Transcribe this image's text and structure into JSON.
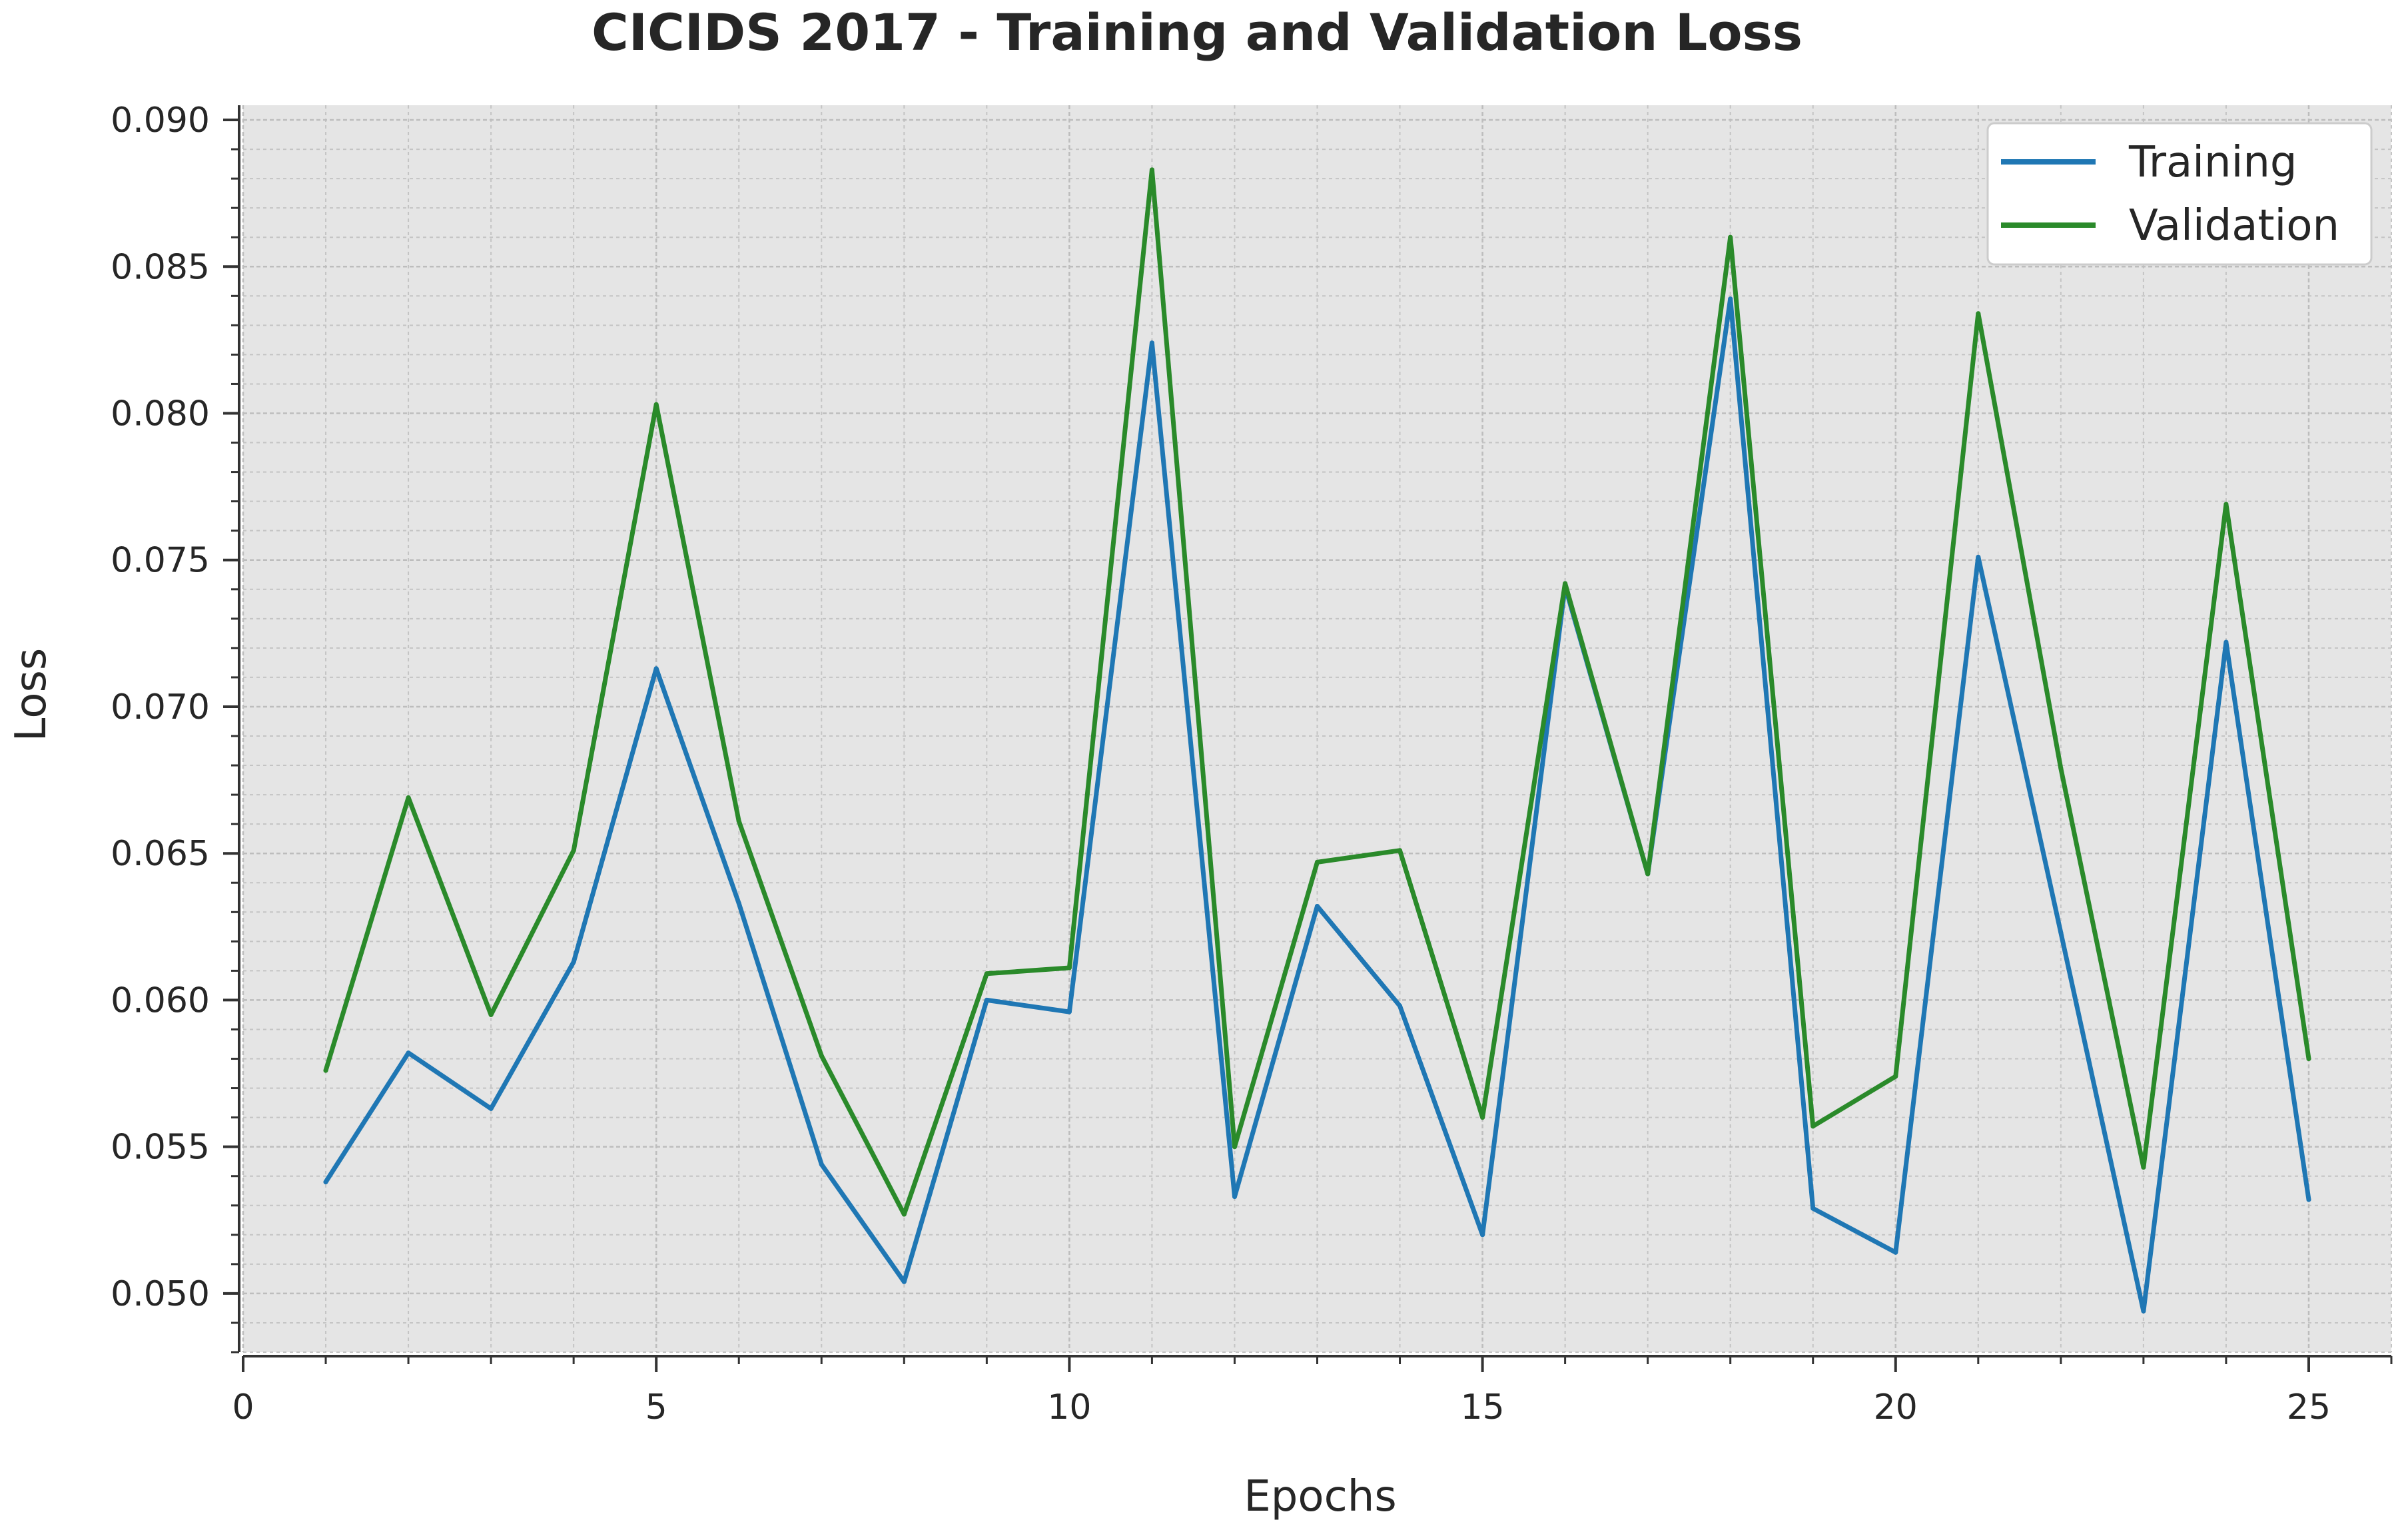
{
  "chart_data": {
    "type": "line",
    "title": "CICIDS 2017 - Training and Validation Loss",
    "xlabel": "Epochs",
    "ylabel": "Loss",
    "xlim": [
      0,
      26
    ],
    "ylim": [
      0.048,
      0.0905
    ],
    "xticks": [
      0,
      5,
      10,
      15,
      20,
      25
    ],
    "xtick_labels": [
      "0",
      "5",
      "10",
      "15",
      "20",
      "25"
    ],
    "yticks": [
      0.05,
      0.055,
      0.06,
      0.065,
      0.07,
      0.075,
      0.08,
      0.085,
      0.09
    ],
    "ytick_labels": [
      "0.050",
      "0.055",
      "0.060",
      "0.065",
      "0.070",
      "0.075",
      "0.080",
      "0.085",
      "0.090"
    ],
    "grid": true,
    "legend_position": "top-right",
    "x": [
      1,
      2,
      3,
      4,
      5,
      6,
      7,
      8,
      9,
      10,
      11,
      12,
      13,
      14,
      15,
      16,
      17,
      18,
      19,
      20,
      21,
      22,
      23,
      24,
      25
    ],
    "series": [
      {
        "name": "Training",
        "color": "#1f77b4",
        "values": [
          0.0538,
          0.0582,
          0.0563,
          0.0613,
          0.0713,
          0.0633,
          0.0544,
          0.0504,
          0.06,
          0.0596,
          0.0824,
          0.0533,
          0.0632,
          0.0598,
          0.052,
          0.0741,
          0.0643,
          0.0839,
          0.0529,
          0.0514,
          0.0751,
          0.0623,
          0.0494,
          0.0722,
          0.0532
        ]
      },
      {
        "name": "Validation",
        "color": "#2a8a2a",
        "values": [
          0.0576,
          0.0669,
          0.0595,
          0.0651,
          0.0803,
          0.0661,
          0.0581,
          0.0527,
          0.0609,
          0.0611,
          0.0883,
          0.055,
          0.0647,
          0.0651,
          0.056,
          0.0742,
          0.0643,
          0.086,
          0.0557,
          0.0574,
          0.0834,
          0.0679,
          0.0543,
          0.0769,
          0.058
        ]
      }
    ]
  }
}
